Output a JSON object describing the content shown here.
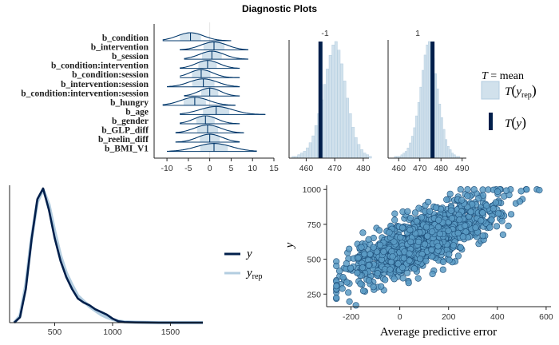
{
  "title": "Diagnostic Plots",
  "colors": {
    "dark": "#011f4b",
    "mid": "#03396c",
    "light": "#b3cde0",
    "fill_light": "#d1e1ec",
    "point": "#5a9bc4",
    "point_edge": "#1e4f7a"
  },
  "chart_data": [
    {
      "type": "ridgeline",
      "categories": [
        "b_condition",
        "b_intervention",
        "b_session",
        "b_condition:intervention",
        "b_condition:session",
        "b_intervention:session",
        "b_condition:intervention:session",
        "b_hungry",
        "b_age",
        "b_gender",
        "b_GLP_diff",
        "b_reelin_diff",
        "b_BMI_V1"
      ],
      "medians": [
        -4.5,
        1.0,
        0.5,
        -0.5,
        -2.0,
        -1.5,
        0.0,
        -3.5,
        1.5,
        -1.0,
        -0.5,
        0.0,
        1.0
      ],
      "lower": [
        -11,
        -7,
        -6,
        -7,
        -7,
        -10,
        -6,
        -11,
        -7,
        -7,
        -8,
        -8,
        -10
      ],
      "upper": [
        5,
        9,
        9,
        7,
        7,
        7,
        7,
        6,
        13,
        7,
        8,
        7,
        11
      ],
      "x_ticks": [
        -10,
        -5,
        0,
        5,
        10,
        15
      ],
      "xlim": [
        -13,
        15
      ]
    },
    {
      "type": "histogram",
      "facets": [
        {
          "label": "-1",
          "x_ticks": [
            460,
            470,
            480
          ],
          "xlim": [
            454,
            482
          ],
          "observed": 465,
          "bin_start": 455,
          "bin_width": 1,
          "counts": [
            1,
            1,
            2,
            3,
            4,
            6,
            9,
            13,
            19,
            26,
            34,
            43,
            52,
            60,
            66,
            68,
            63,
            55,
            45,
            35,
            26,
            18,
            12,
            8,
            5,
            3,
            2,
            1
          ]
        },
        {
          "label": "1",
          "x_ticks": [
            460,
            470,
            480,
            490
          ],
          "xlim": [
            455,
            492
          ],
          "observed": 476,
          "bin_start": 458,
          "bin_width": 1,
          "counts": [
            1,
            1,
            1,
            2,
            3,
            4,
            6,
            9,
            13,
            18,
            25,
            33,
            42,
            52,
            61,
            67,
            69,
            66,
            59,
            50,
            41,
            32,
            24,
            17,
            11,
            7,
            5,
            3,
            2,
            1,
            1
          ]
        }
      ],
      "legend": {
        "title": "T = mean",
        "rep_label": "T(y_rep)",
        "obs_label": "T(y)"
      }
    },
    {
      "type": "density",
      "x_ticks": [
        500,
        1000,
        1500
      ],
      "xlim": [
        110,
        1780
      ],
      "series": [
        {
          "name": "y",
          "x": [
            150,
            200,
            250,
            300,
            350,
            400,
            450,
            500,
            550,
            600,
            650,
            700,
            750,
            800,
            850,
            900,
            950,
            1000,
            1050,
            1100,
            1200,
            1300,
            1400,
            1500,
            1600,
            1700,
            1780
          ],
          "y": [
            0.0,
            0.04,
            0.25,
            0.62,
            0.92,
            1.0,
            0.84,
            0.63,
            0.46,
            0.34,
            0.25,
            0.18,
            0.15,
            0.13,
            0.1,
            0.08,
            0.06,
            0.03,
            0.01,
            0.004,
            0.002,
            0.001,
            0.0,
            0.0,
            0.0,
            0.0,
            0.0
          ]
        },
        {
          "name": "y_rep",
          "x": [
            150,
            200,
            250,
            300,
            350,
            400,
            450,
            500,
            550,
            600,
            650,
            700,
            750,
            800,
            850,
            900,
            950,
            1000,
            1050,
            1100,
            1200,
            1300,
            1400,
            1500,
            1600,
            1700,
            1780
          ],
          "y": [
            0.0,
            0.05,
            0.28,
            0.63,
            0.9,
            0.99,
            0.88,
            0.68,
            0.5,
            0.37,
            0.28,
            0.2,
            0.16,
            0.12,
            0.09,
            0.06,
            0.04,
            0.025,
            0.012,
            0.006,
            0.003,
            0.001,
            0.0,
            0.0,
            0.0,
            0.0,
            0.0
          ]
        }
      ],
      "legend": [
        {
          "label": "y",
          "sub": ""
        },
        {
          "label": "y",
          "sub": "rep"
        }
      ]
    },
    {
      "type": "scatter",
      "xlabel": "Average predictive error",
      "ylabel": "y",
      "x_ticks": [
        -200,
        0,
        200,
        400,
        600
      ],
      "y_ticks": [
        250,
        500,
        750,
        1000
      ],
      "xlim": [
        -300,
        620
      ],
      "ylim": [
        160,
        1030
      ],
      "n_points": 1400,
      "trend": {
        "intercept": 555,
        "slope": 0.75,
        "spread": 95
      },
      "x_range": [
        -260,
        580
      ],
      "y_range": [
        170,
        1000
      ]
    }
  ]
}
